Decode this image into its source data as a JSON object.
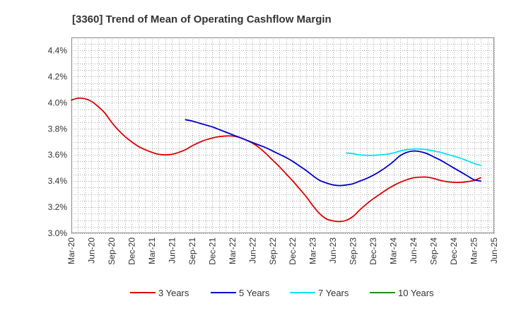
{
  "chart_data": {
    "type": "line",
    "title": "[3360]  Trend of Mean of Operating Cashflow Margin",
    "xlabel": "",
    "ylabel": "",
    "x_ticks": [
      "Mar-20",
      "Jun-20",
      "Sep-20",
      "Dec-20",
      "Mar-21",
      "Jun-21",
      "Sep-21",
      "Dec-21",
      "Mar-22",
      "Jun-22",
      "Sep-22",
      "Dec-22",
      "Mar-23",
      "Jun-23",
      "Sep-23",
      "Dec-23",
      "Mar-24",
      "Jun-24",
      "Sep-24",
      "Dec-24",
      "Mar-25",
      "Jun-25"
    ],
    "y_ticks": [
      "3.0%",
      "3.2%",
      "3.4%",
      "3.6%",
      "3.8%",
      "4.0%",
      "4.2%",
      "4.4%"
    ],
    "ylim": [
      3.0,
      4.5
    ],
    "y_unit": "%",
    "grid": true,
    "legend_position": "bottom",
    "series": [
      {
        "name": "3 Years",
        "color": "#dd0000",
        "points": [
          [
            "Mar-20",
            4.02
          ],
          [
            "Apr-20",
            4.035
          ],
          [
            "May-20",
            4.03
          ],
          [
            "Jun-20",
            4.01
          ],
          [
            "Jul-20",
            3.97
          ],
          [
            "Aug-20",
            3.92
          ],
          [
            "Sep-20",
            3.85
          ],
          [
            "Oct-20",
            3.79
          ],
          [
            "Nov-20",
            3.74
          ],
          [
            "Dec-20",
            3.7
          ],
          [
            "Jan-21",
            3.665
          ],
          [
            "Feb-21",
            3.64
          ],
          [
            "Mar-21",
            3.62
          ],
          [
            "Apr-21",
            3.605
          ],
          [
            "May-21",
            3.6
          ],
          [
            "Jun-21",
            3.605
          ],
          [
            "Jul-21",
            3.62
          ],
          [
            "Aug-21",
            3.64
          ],
          [
            "Sep-21",
            3.67
          ],
          [
            "Oct-21",
            3.695
          ],
          [
            "Nov-21",
            3.715
          ],
          [
            "Dec-21",
            3.73
          ],
          [
            "Jan-22",
            3.74
          ],
          [
            "Feb-22",
            3.745
          ],
          [
            "Mar-22",
            3.745
          ],
          [
            "Apr-22",
            3.735
          ],
          [
            "May-22",
            3.715
          ],
          [
            "Jun-22",
            3.69
          ],
          [
            "Jul-22",
            3.655
          ],
          [
            "Aug-22",
            3.61
          ],
          [
            "Sep-22",
            3.56
          ],
          [
            "Oct-22",
            3.51
          ],
          [
            "Nov-22",
            3.455
          ],
          [
            "Dec-22",
            3.4
          ],
          [
            "Jan-23",
            3.34
          ],
          [
            "Feb-23",
            3.28
          ],
          [
            "Mar-23",
            3.21
          ],
          [
            "Apr-23",
            3.15
          ],
          [
            "May-23",
            3.11
          ],
          [
            "Jun-23",
            3.095
          ],
          [
            "Jul-23",
            3.09
          ],
          [
            "Aug-23",
            3.1
          ],
          [
            "Sep-23",
            3.13
          ],
          [
            "Oct-23",
            3.18
          ],
          [
            "Nov-23",
            3.225
          ],
          [
            "Dec-23",
            3.265
          ],
          [
            "Jan-24",
            3.3
          ],
          [
            "Feb-24",
            3.335
          ],
          [
            "Mar-24",
            3.365
          ],
          [
            "Apr-24",
            3.39
          ],
          [
            "May-24",
            3.41
          ],
          [
            "Jun-24",
            3.425
          ],
          [
            "Jul-24",
            3.43
          ],
          [
            "Aug-24",
            3.43
          ],
          [
            "Sep-24",
            3.42
          ],
          [
            "Oct-24",
            3.405
          ],
          [
            "Nov-24",
            3.395
          ],
          [
            "Dec-24",
            3.39
          ],
          [
            "Jan-25",
            3.39
          ],
          [
            "Feb-25",
            3.395
          ],
          [
            "Mar-25",
            3.405
          ],
          [
            "Apr-25",
            3.425
          ]
        ]
      },
      {
        "name": "5 Years",
        "color": "#0000cc",
        "points": [
          [
            "Aug-21",
            3.87
          ],
          [
            "Sep-21",
            3.86
          ],
          [
            "Oct-21",
            3.845
          ],
          [
            "Nov-21",
            3.83
          ],
          [
            "Dec-21",
            3.815
          ],
          [
            "Jan-22",
            3.795
          ],
          [
            "Feb-22",
            3.775
          ],
          [
            "Mar-22",
            3.755
          ],
          [
            "Apr-22",
            3.735
          ],
          [
            "May-22",
            3.715
          ],
          [
            "Jun-22",
            3.695
          ],
          [
            "Jul-22",
            3.675
          ],
          [
            "Aug-22",
            3.655
          ],
          [
            "Sep-22",
            3.63
          ],
          [
            "Oct-22",
            3.605
          ],
          [
            "Nov-22",
            3.58
          ],
          [
            "Dec-22",
            3.55
          ],
          [
            "Jan-23",
            3.515
          ],
          [
            "Feb-23",
            3.48
          ],
          [
            "Mar-23",
            3.44
          ],
          [
            "Apr-23",
            3.405
          ],
          [
            "May-23",
            3.385
          ],
          [
            "Jun-23",
            3.37
          ],
          [
            "Jul-23",
            3.365
          ],
          [
            "Aug-23",
            3.37
          ],
          [
            "Sep-23",
            3.38
          ],
          [
            "Oct-23",
            3.4
          ],
          [
            "Nov-23",
            3.42
          ],
          [
            "Dec-23",
            3.445
          ],
          [
            "Jan-24",
            3.475
          ],
          [
            "Feb-24",
            3.51
          ],
          [
            "Mar-24",
            3.55
          ],
          [
            "Apr-24",
            3.595
          ],
          [
            "May-24",
            3.62
          ],
          [
            "Jun-24",
            3.63
          ],
          [
            "Jul-24",
            3.625
          ],
          [
            "Aug-24",
            3.61
          ],
          [
            "Sep-24",
            3.585
          ],
          [
            "Oct-24",
            3.56
          ],
          [
            "Nov-24",
            3.53
          ],
          [
            "Dec-24",
            3.5
          ],
          [
            "Jan-25",
            3.47
          ],
          [
            "Feb-25",
            3.44
          ],
          [
            "Mar-25",
            3.41
          ],
          [
            "Apr-25",
            3.4
          ]
        ]
      },
      {
        "name": "7 Years",
        "color": "#00e5ee",
        "points": [
          [
            "Aug-23",
            3.615
          ],
          [
            "Sep-23",
            3.61
          ],
          [
            "Oct-23",
            3.6
          ],
          [
            "Nov-23",
            3.597
          ],
          [
            "Dec-23",
            3.597
          ],
          [
            "Jan-24",
            3.6
          ],
          [
            "Feb-24",
            3.605
          ],
          [
            "Mar-24",
            3.615
          ],
          [
            "Apr-24",
            3.63
          ],
          [
            "May-24",
            3.64
          ],
          [
            "Jun-24",
            3.645
          ],
          [
            "Jul-24",
            3.645
          ],
          [
            "Aug-24",
            3.64
          ],
          [
            "Sep-24",
            3.63
          ],
          [
            "Oct-24",
            3.62
          ],
          [
            "Nov-24",
            3.605
          ],
          [
            "Dec-24",
            3.59
          ],
          [
            "Jan-25",
            3.575
          ],
          [
            "Feb-25",
            3.555
          ],
          [
            "Mar-25",
            3.535
          ],
          [
            "Apr-25",
            3.52
          ]
        ]
      },
      {
        "name": "10 Years",
        "color": "#228b22",
        "points": []
      }
    ]
  }
}
